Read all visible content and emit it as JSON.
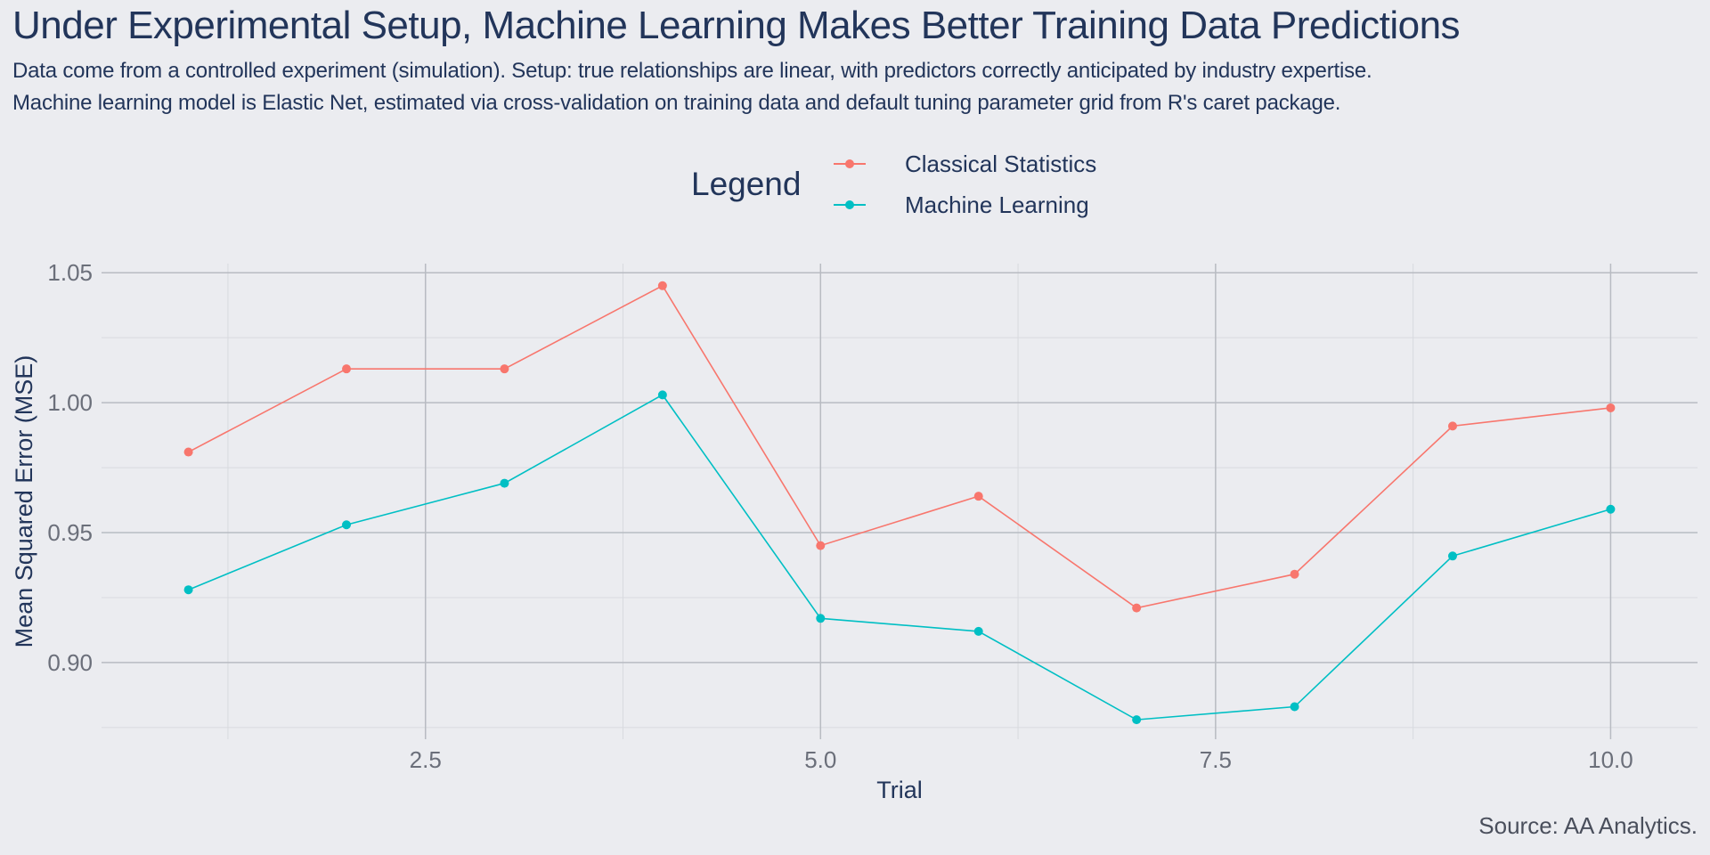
{
  "title": "Under Experimental Setup, Machine Learning Makes Better Training Data Predictions",
  "subtitle_line1": "Data come from a controlled experiment (simulation). Setup: true relationships are linear, with predictors correctly anticipated by industry expertise.",
  "subtitle_line2": "Machine learning model is Elastic Net, estimated via cross-validation on training data and default tuning parameter grid from R's caret package.",
  "caption": "Source: AA Analytics.",
  "legend": {
    "title": "Legend",
    "items": [
      {
        "label": "Classical Statistics",
        "color": "#F8766D"
      },
      {
        "label": "Machine Learning",
        "color": "#00BFC4"
      }
    ]
  },
  "chart_data": {
    "type": "line",
    "xlabel": "Trial",
    "ylabel": "Mean Squared Error (MSE)",
    "x": [
      1,
      2,
      3,
      4,
      5,
      6,
      7,
      8,
      9,
      10
    ],
    "xlim": [
      0.45,
      10.55
    ],
    "ylim": [
      0.8705,
      1.0535
    ],
    "xticks": [
      2.5,
      5.0,
      7.5,
      10.0
    ],
    "xtick_labels": [
      "2.5",
      "5.0",
      "7.5",
      "10.0"
    ],
    "yticks": [
      0.9,
      0.95,
      1.0,
      1.05
    ],
    "ytick_labels": [
      "0.90",
      "0.95",
      "1.00",
      "1.05"
    ],
    "grid": true,
    "legend_position": "top",
    "series": [
      {
        "name": "Classical Statistics",
        "color": "#F8766D",
        "values": [
          0.981,
          1.013,
          1.013,
          1.045,
          0.945,
          0.964,
          0.921,
          0.934,
          0.991,
          0.998
        ]
      },
      {
        "name": "Machine Learning",
        "color": "#00BFC4",
        "values": [
          0.928,
          0.953,
          0.969,
          1.003,
          0.917,
          0.912,
          0.878,
          0.883,
          0.941,
          0.959
        ]
      }
    ],
    "colors": {
      "background": "#EBECF0",
      "grid_major": "#B8BBC2",
      "grid_minor": "#D8DADF",
      "axis_text": "#6B6F7A",
      "title_text": "#22355A"
    }
  }
}
